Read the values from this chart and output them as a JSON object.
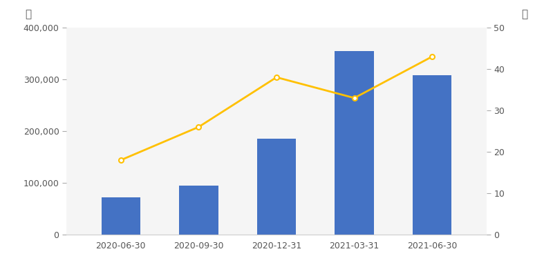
{
  "categories": [
    "2020-06-30",
    "2020-09-30",
    "2020-12-31",
    "2021-03-31",
    "2021-06-30"
  ],
  "bar_values": [
    72000,
    95000,
    185000,
    355000,
    308000
  ],
  "line_values": [
    18,
    26,
    38,
    33,
    43
  ],
  "bar_color": "#4472C4",
  "line_color": "#FFC000",
  "left_ylabel": "户",
  "right_ylabel": "元",
  "left_ylim": [
    0,
    400000
  ],
  "right_ylim": [
    0,
    50
  ],
  "left_yticks": [
    0,
    100000,
    200000,
    300000,
    400000
  ],
  "right_yticks": [
    0,
    10,
    20,
    30,
    40,
    50
  ],
  "background_color": "#F5F5F5",
  "fig_background_color": "#FFFFFF"
}
